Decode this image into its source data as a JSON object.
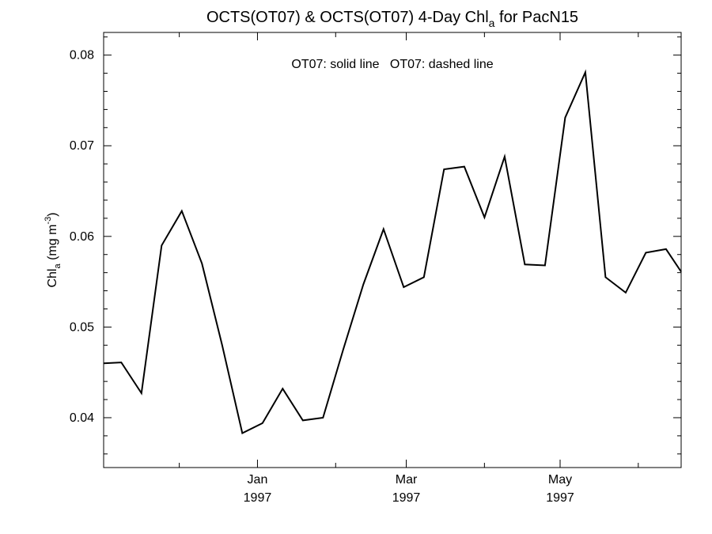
{
  "title_parts": {
    "main": "OCTS(OT07) & OCTS(OT07) 4-Day Chl",
    "sub": "a",
    "tail": " for PacN15"
  },
  "legend_text": "OT07: solid line   OT07: dashed line",
  "y_label_parts": {
    "pre": "Chl",
    "sub": "a",
    "mid": " (mg m",
    "sup": "-3",
    "post": ")"
  },
  "chart_data": {
    "type": "line",
    "title": "OCTS(OT07) & OCTS(OT07) 4-Day Chla for PacN15",
    "ylabel": "Chla (mg m-3)",
    "xlabel": "",
    "ylim": [
      0.0345,
      0.0825
    ],
    "xlim": [
      "1996-11-01",
      "1997-06-18"
    ],
    "y_ticks": [
      0.04,
      0.05,
      0.06,
      0.07,
      0.08
    ],
    "y_tick_labels": [
      "0.04",
      "0.05",
      "0.06",
      "0.07",
      "0.08"
    ],
    "x_ticks": [
      {
        "date": "1997-01-01",
        "label": "Jan",
        "year": "1997"
      },
      {
        "date": "1997-03-01",
        "label": "Mar",
        "year": "1997"
      },
      {
        "date": "1997-05-01",
        "label": "May",
        "year": "1997"
      }
    ],
    "x_minor_ticks": [
      "1996-12-01",
      "1997-02-01",
      "1997-04-01",
      "1997-06-01"
    ],
    "grid": false,
    "series": [
      {
        "name": "OT07",
        "style": "solid",
        "color": "#000000",
        "x": [
          "1996-11-01",
          "1996-11-08",
          "1996-11-16",
          "1996-11-24",
          "1996-12-02",
          "1996-12-10",
          "1996-12-18",
          "1996-12-26",
          "1997-01-03",
          "1997-01-11",
          "1997-01-19",
          "1997-01-27",
          "1997-02-04",
          "1997-02-12",
          "1997-02-20",
          "1997-02-28",
          "1997-03-08",
          "1997-03-16",
          "1997-03-24",
          "1997-04-01",
          "1997-04-09",
          "1997-04-17",
          "1997-04-25",
          "1997-05-03",
          "1997-05-11",
          "1997-05-19",
          "1997-05-27",
          "1997-06-04",
          "1997-06-12",
          "1997-06-18"
        ],
        "y": [
          0.046,
          0.0461,
          0.0427,
          0.059,
          0.0628,
          0.057,
          0.048,
          0.0383,
          0.0394,
          0.0432,
          0.0397,
          0.04,
          0.0475,
          0.0547,
          0.0608,
          0.0544,
          0.0555,
          0.0674,
          0.0677,
          0.0621,
          0.0688,
          0.0569,
          0.0568,
          0.0731,
          0.0781,
          0.0555,
          0.0538,
          0.0582,
          0.0586,
          0.0561
        ]
      }
    ]
  }
}
